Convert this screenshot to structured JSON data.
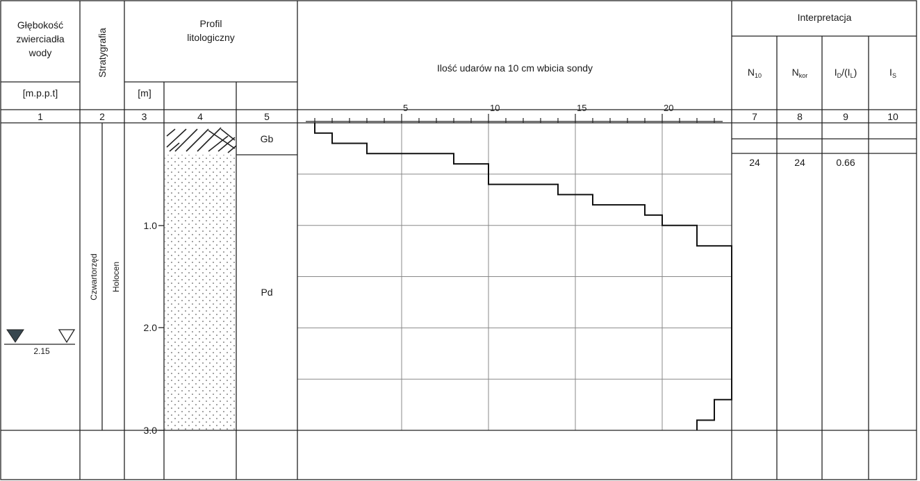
{
  "header": {
    "depth_water_title": [
      "Głębokość",
      "zwierciadła",
      "wody"
    ],
    "depth_water_unit": "[m.p.p.t]",
    "stratigraphy_title": "Stratygrafia",
    "profile_title": [
      "Profil",
      "litologiczny"
    ],
    "profile_unit": "[m]",
    "chart_title": "Ilość udarów na 10 cm wbicia sondy",
    "interpretation_title": "Interpretacja",
    "interp_cols": [
      {
        "main": "N",
        "sub": "10"
      },
      {
        "main": "N",
        "sub": "kor"
      },
      {
        "main": "I",
        "sub": "D",
        "suffix": "/(I",
        "sub2": "L",
        "end": ")"
      },
      {
        "main": "I",
        "sub": "S"
      }
    ]
  },
  "column_numbers": [
    "1",
    "2",
    "3",
    "4",
    "5",
    "7",
    "8",
    "9",
    "10"
  ],
  "water_table": {
    "depth_label": "2.15",
    "depth_m": 2.15
  },
  "stratigraphy": {
    "era": "Czwartorzęd",
    "epoch": "Holocen"
  },
  "depth_ticks": [
    "1.0",
    "2.0",
    "3.0"
  ],
  "layers": [
    {
      "symbol": "Gb",
      "top_m": 0.0,
      "bottom_m": 0.3,
      "pattern": "hatch"
    },
    {
      "symbol": "Pd",
      "top_m": 0.3,
      "bottom_m": 3.0,
      "pattern": "dots"
    }
  ],
  "interpretation_row": {
    "n10": "24",
    "nkor": "24",
    "id_il": "0.66",
    "is": ""
  },
  "chart_data": {
    "type": "line",
    "title": "Ilość udarów na 10 cm wbicia sondy",
    "x_tick_labels": [
      "5",
      "10",
      "15",
      "20"
    ],
    "xlim": [
      0,
      24
    ],
    "ylim": [
      0,
      3.0
    ],
    "y_inverted": true,
    "step_profile": [
      {
        "from_m": 0.0,
        "to_m": 0.1,
        "blows": 0
      },
      {
        "from_m": 0.1,
        "to_m": 0.2,
        "blows": 1
      },
      {
        "from_m": 0.2,
        "to_m": 0.3,
        "blows": 3
      },
      {
        "from_m": 0.3,
        "to_m": 0.4,
        "blows": 8
      },
      {
        "from_m": 0.4,
        "to_m": 0.6,
        "blows": 10
      },
      {
        "from_m": 0.6,
        "to_m": 0.7,
        "blows": 14
      },
      {
        "from_m": 0.7,
        "to_m": 0.8,
        "blows": 16
      },
      {
        "from_m": 0.8,
        "to_m": 0.9,
        "blows": 19
      },
      {
        "from_m": 0.9,
        "to_m": 1.0,
        "blows": 20
      },
      {
        "from_m": 1.0,
        "to_m": 1.2,
        "blows": 22
      },
      {
        "from_m": 1.2,
        "to_m": 2.7,
        "blows": 24
      },
      {
        "from_m": 2.7,
        "to_m": 2.9,
        "blows": 23
      },
      {
        "from_m": 2.9,
        "to_m": 3.0,
        "blows": 22
      }
    ]
  }
}
